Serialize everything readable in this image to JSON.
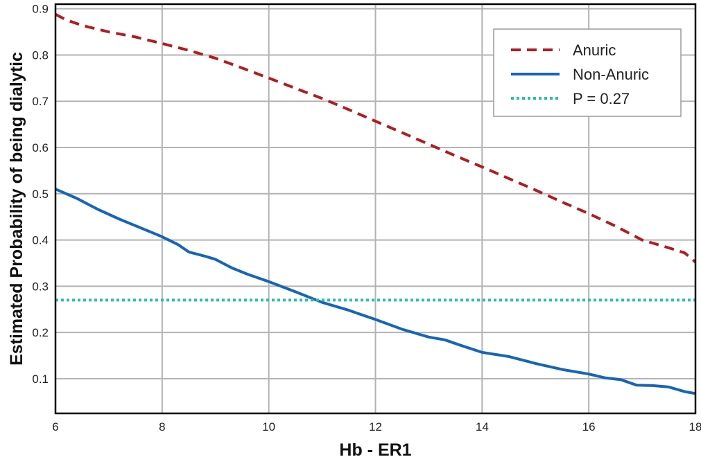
{
  "chart_data": {
    "type": "line",
    "xlabel": "Hb - ER1",
    "ylabel": "Estimated Probability of being dialytic",
    "xlim": [
      6,
      18
    ],
    "ylim": [
      0.025,
      0.91
    ],
    "x_ticks": [
      "6",
      "8",
      "10",
      "12",
      "14",
      "16",
      "18"
    ],
    "y_ticks": [
      "0.1",
      "0.2",
      "0.3",
      "0.4",
      "0.5",
      "0.6",
      "0.7",
      "0.8",
      "0.9"
    ],
    "grid": true,
    "legend_position": "top-right",
    "series": [
      {
        "name": "Anuric",
        "color": "#b01c22",
        "style": "dashed",
        "points": [
          [
            6.0,
            0.888
          ],
          [
            6.2,
            0.876
          ],
          [
            6.5,
            0.864
          ],
          [
            7.0,
            0.85
          ],
          [
            7.5,
            0.839
          ],
          [
            8.0,
            0.825
          ],
          [
            8.5,
            0.81
          ],
          [
            9.0,
            0.793
          ],
          [
            9.5,
            0.772
          ],
          [
            10.0,
            0.75
          ],
          [
            10.5,
            0.728
          ],
          [
            11.0,
            0.706
          ],
          [
            11.5,
            0.682
          ],
          [
            12.0,
            0.657
          ],
          [
            12.5,
            0.632
          ],
          [
            13.0,
            0.607
          ],
          [
            13.5,
            0.582
          ],
          [
            14.0,
            0.558
          ],
          [
            14.5,
            0.533
          ],
          [
            15.0,
            0.508
          ],
          [
            15.5,
            0.482
          ],
          [
            16.0,
            0.457
          ],
          [
            16.5,
            0.43
          ],
          [
            17.0,
            0.4
          ],
          [
            17.5,
            0.383
          ],
          [
            17.8,
            0.372
          ],
          [
            18.0,
            0.352
          ]
        ]
      },
      {
        "name": "Non-Anuric",
        "color": "#1565b8",
        "style": "solid",
        "points": [
          [
            6.0,
            0.51
          ],
          [
            6.4,
            0.49
          ],
          [
            6.8,
            0.466
          ],
          [
            7.2,
            0.445
          ],
          [
            7.6,
            0.426
          ],
          [
            8.0,
            0.407
          ],
          [
            8.3,
            0.39
          ],
          [
            8.5,
            0.374
          ],
          [
            8.8,
            0.365
          ],
          [
            9.0,
            0.358
          ],
          [
            9.3,
            0.34
          ],
          [
            9.6,
            0.326
          ],
          [
            10.0,
            0.31
          ],
          [
            10.5,
            0.288
          ],
          [
            11.0,
            0.265
          ],
          [
            11.5,
            0.248
          ],
          [
            12.0,
            0.228
          ],
          [
            12.5,
            0.207
          ],
          [
            13.0,
            0.19
          ],
          [
            13.3,
            0.184
          ],
          [
            13.6,
            0.172
          ],
          [
            14.0,
            0.157
          ],
          [
            14.5,
            0.148
          ],
          [
            15.0,
            0.133
          ],
          [
            15.5,
            0.12
          ],
          [
            16.0,
            0.11
          ],
          [
            16.3,
            0.102
          ],
          [
            16.6,
            0.098
          ],
          [
            16.9,
            0.086
          ],
          [
            17.2,
            0.085
          ],
          [
            17.5,
            0.082
          ],
          [
            17.8,
            0.072
          ],
          [
            18.0,
            0.068
          ]
        ]
      },
      {
        "name": "P = 0.27",
        "color": "#2bbfa8",
        "style": "dotted",
        "points": [
          [
            6.0,
            0.27
          ],
          [
            18.0,
            0.27
          ]
        ]
      }
    ]
  }
}
